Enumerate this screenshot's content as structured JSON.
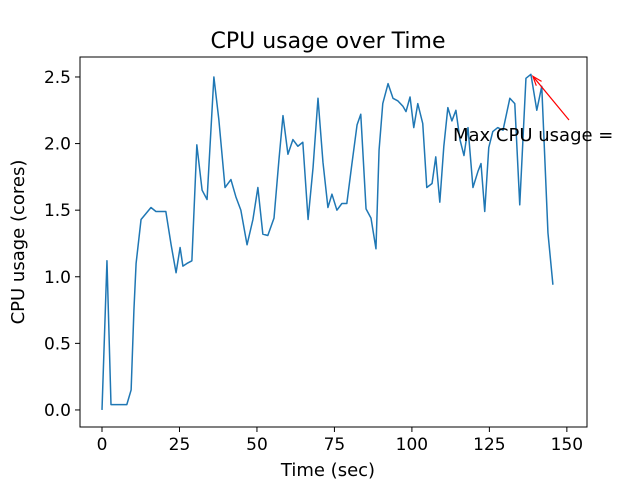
{
  "chart_data": {
    "type": "line",
    "title": "CPU usage over Time",
    "x_label": "Time (sec)",
    "y_label": "CPU usage (cores)",
    "annotation": "Max CPU usage =",
    "annotation_color": "#ff0000",
    "xlim": [
      -7.1,
      156.5
    ],
    "ylim": [
      -0.128,
      2.65
    ],
    "xticks": [
      0,
      25,
      50,
      75,
      100,
      125,
      150
    ],
    "yticks": [
      {
        "value": 0,
        "label": "0.0"
      },
      0.5,
      {
        "value": 1,
        "label": "1.0"
      },
      1.5,
      {
        "value": 2,
        "label": "2.0"
      },
      2.5
    ],
    "x": [
      0,
      1.6,
      2.9,
      4.5,
      6.1,
      8,
      9.4,
      10.3,
      11,
      12.6,
      15.8,
      17.4,
      19,
      20.6,
      22.3,
      23.9,
      25.2,
      26.1,
      27.4,
      29,
      30.6,
      32.3,
      33.9,
      36.1,
      37.7,
      39.7,
      41.6,
      43.2,
      44.8,
      46.8,
      48.7,
      50.3,
      51.9,
      53.5,
      55.5,
      57.1,
      58.4,
      60,
      61.6,
      63.2,
      64.8,
      66.5,
      68.1,
      69.7,
      71.3,
      72.9,
      74.2,
      75.8,
      77.4,
      79,
      80.6,
      82.3,
      83.5,
      85.2,
      86.8,
      88.4,
      89.4,
      90.6,
      92.3,
      93.9,
      95.5,
      97.1,
      98.1,
      99.4,
      100.6,
      101.9,
      103.5,
      104.8,
      106.5,
      107.7,
      109,
      110.3,
      111.6,
      112.9,
      114.2,
      115.5,
      116.8,
      118.1,
      119.7,
      121.3,
      122.3,
      123.5,
      124.8,
      126.1,
      127.7,
      129.4,
      131.6,
      133.2,
      134.8,
      136.8,
      138.4,
      140.3,
      141.9,
      143.9,
      145.5
    ],
    "series": [
      {
        "color": "#1f77b4",
        "values": [
          0,
          1.12,
          0.04,
          0.04,
          0.04,
          0.04,
          0.15,
          0.75,
          1.1,
          1.43,
          1.52,
          1.49,
          1.49,
          1.49,
          1.24,
          1.03,
          1.22,
          1.08,
          1.1,
          1.12,
          1.99,
          1.65,
          1.58,
          2.5,
          2.18,
          1.67,
          1.73,
          1.6,
          1.5,
          1.24,
          1.43,
          1.67,
          1.32,
          1.31,
          1.44,
          1.88,
          2.21,
          1.92,
          2.03,
          1.98,
          2.01,
          1.43,
          1.82,
          2.34,
          1.86,
          1.52,
          1.62,
          1.5,
          1.55,
          1.55,
          1.84,
          2.14,
          2.22,
          1.51,
          1.44,
          1.21,
          1.95,
          2.3,
          2.45,
          2.34,
          2.32,
          2.28,
          2.24,
          2.35,
          2.12,
          2.3,
          2.15,
          1.67,
          1.7,
          1.9,
          1.56,
          1.98,
          2.27,
          2.17,
          2.25,
          2.03,
          1.91,
          2.12,
          1.67,
          1.79,
          1.85,
          1.49,
          1.97,
          2.09,
          2.12,
          2.1,
          2.34,
          2.3,
          1.54,
          2.49,
          2.52,
          2.25,
          2.43,
          1.33,
          0.94
        ]
      }
    ]
  }
}
